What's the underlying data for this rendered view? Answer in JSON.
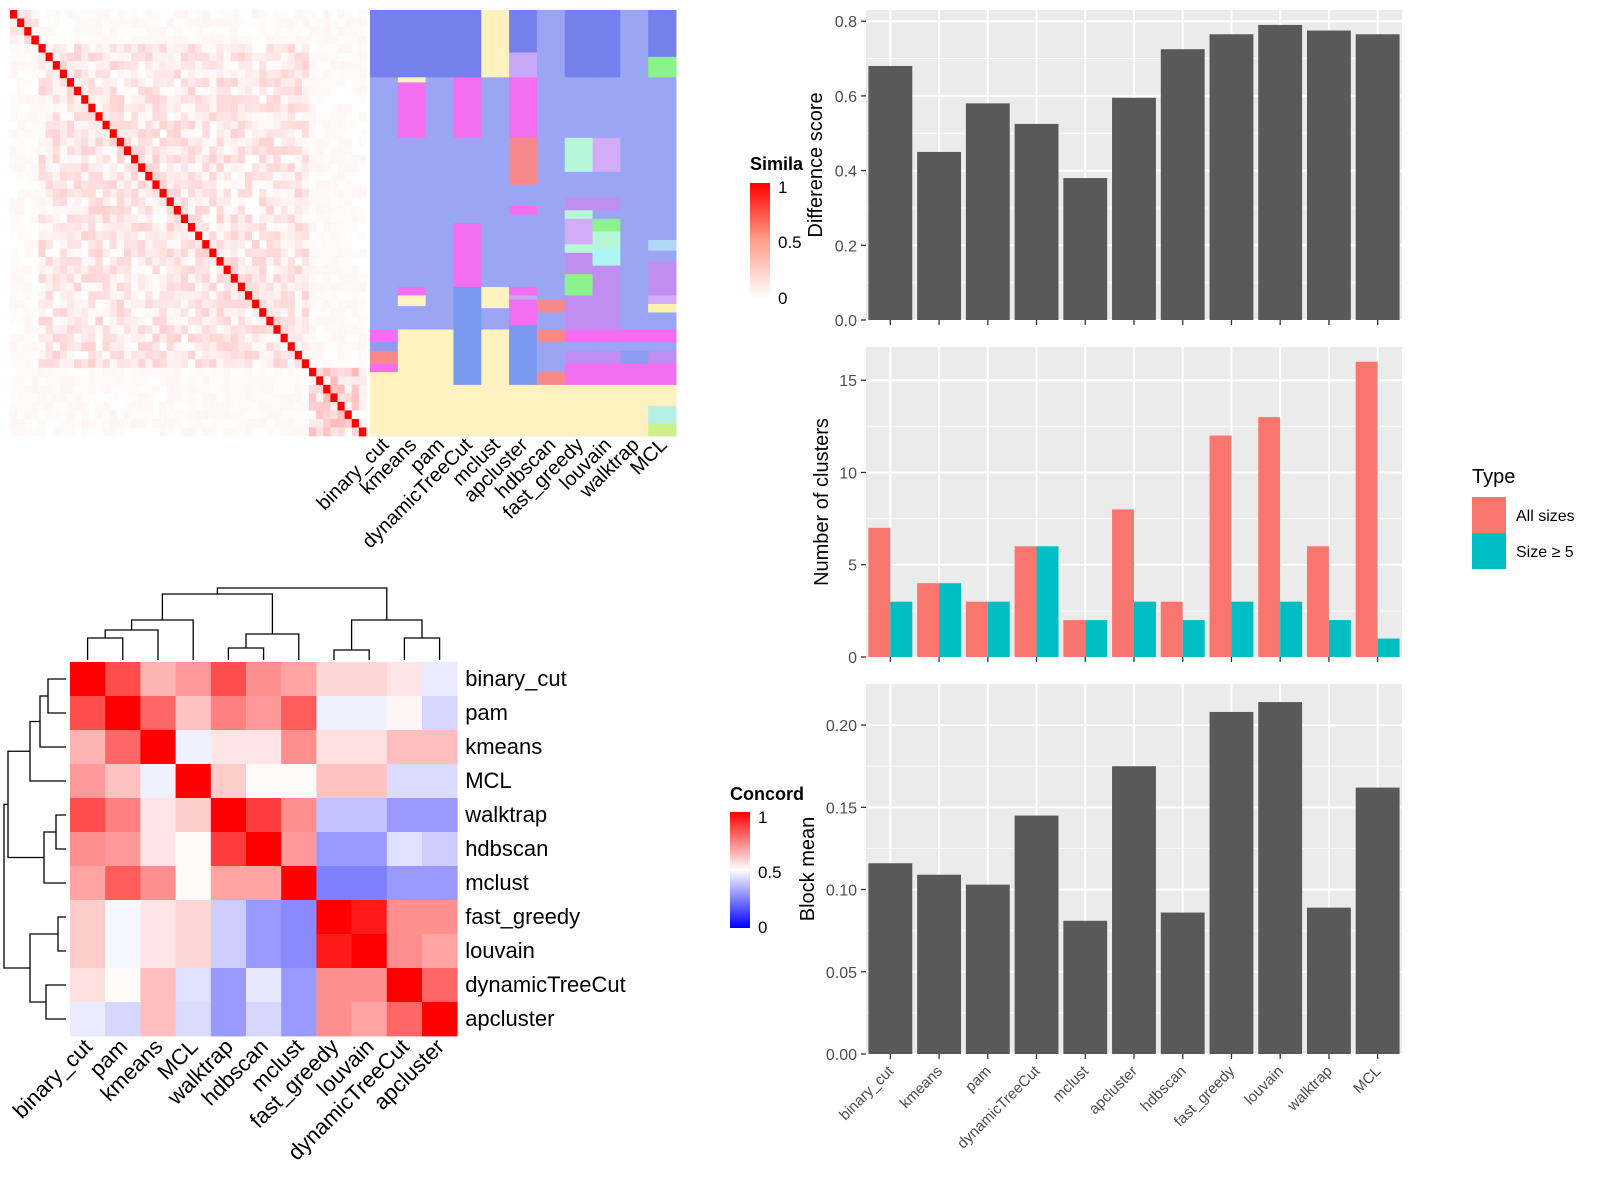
{
  "chart_data": [
    {
      "type": "heatmap",
      "id": "similarity",
      "legend_title": "Simila",
      "legend_ticks": [
        "1",
        "0.5",
        "0"
      ],
      "legend_colors": {
        "low": "#ffffff",
        "high": "#ff0000"
      }
    },
    {
      "type": "heatmap",
      "id": "classification",
      "columns": [
        "binary_cut",
        "kmeans",
        "pam",
        "dynamicTreeCut",
        "mclust",
        "apcluster",
        "hdbscan",
        "fast_greedy",
        "louvain",
        "walktrap",
        "MCL"
      ]
    },
    {
      "type": "heatmap",
      "id": "concordance",
      "legend_title": "Concord",
      "legend_ticks": [
        "1",
        "0.5",
        "0"
      ],
      "legend_colors": {
        "low": "#0000ff",
        "mid": "#ffffff",
        "high": "#ff0000"
      },
      "rows": [
        "binary_cut",
        "pam",
        "kmeans",
        "MCL",
        "walktrap",
        "hdbscan",
        "mclust",
        "fast_greedy",
        "louvain",
        "dynamicTreeCut",
        "apcluster"
      ],
      "columns": [
        "binary_cut",
        "pam",
        "kmeans",
        "MCL",
        "walktrap",
        "hdbscan",
        "mclust",
        "fast_greedy",
        "louvain",
        "dynamicTreeCut",
        "apcluster"
      ],
      "values": [
        [
          1.0,
          0.85,
          0.65,
          0.7,
          0.85,
          0.72,
          0.68,
          0.58,
          0.58,
          0.55,
          0.46
        ],
        [
          0.85,
          1.0,
          0.8,
          0.62,
          0.75,
          0.7,
          0.82,
          0.47,
          0.47,
          0.52,
          0.42
        ],
        [
          0.65,
          0.8,
          1.0,
          0.47,
          0.55,
          0.55,
          0.72,
          0.56,
          0.56,
          0.63,
          0.63
        ],
        [
          0.7,
          0.62,
          0.47,
          1.0,
          0.6,
          0.51,
          0.51,
          0.62,
          0.62,
          0.43,
          0.43
        ],
        [
          0.85,
          0.75,
          0.55,
          0.6,
          1.0,
          0.88,
          0.72,
          0.38,
          0.38,
          0.3,
          0.3
        ],
        [
          0.72,
          0.7,
          0.55,
          0.51,
          0.88,
          1.0,
          0.7,
          0.3,
          0.3,
          0.44,
          0.4
        ],
        [
          0.68,
          0.82,
          0.72,
          0.51,
          0.68,
          0.68,
          1.0,
          0.25,
          0.25,
          0.3,
          0.3
        ],
        [
          0.6,
          0.48,
          0.55,
          0.58,
          0.4,
          0.3,
          0.27,
          1.0,
          0.95,
          0.72,
          0.72
        ],
        [
          0.6,
          0.48,
          0.55,
          0.58,
          0.4,
          0.3,
          0.27,
          0.95,
          1.0,
          0.72,
          0.68
        ],
        [
          0.56,
          0.51,
          0.63,
          0.44,
          0.3,
          0.45,
          0.3,
          0.72,
          0.72,
          1.0,
          0.8
        ],
        [
          0.46,
          0.42,
          0.63,
          0.43,
          0.3,
          0.42,
          0.3,
          0.72,
          0.68,
          0.8,
          1.0
        ]
      ]
    },
    {
      "type": "bar",
      "id": "difference-score",
      "categories": [
        "binary_cut",
        "kmeans",
        "pam",
        "dynamicTreeCut",
        "mclust",
        "apcluster",
        "hdbscan",
        "fast_greedy",
        "louvain",
        "walktrap",
        "MCL"
      ],
      "values": [
        0.68,
        0.45,
        0.58,
        0.525,
        0.38,
        0.595,
        0.725,
        0.765,
        0.79,
        0.775,
        0.765
      ],
      "ylabel": "Difference score",
      "ylim": [
        0,
        0.83
      ],
      "yticks": [
        "0.0",
        "0.2",
        "0.4",
        "0.6",
        "0.8"
      ],
      "grid": true,
      "bar_color": "#595959",
      "panel_color": "#ebebeb"
    },
    {
      "type": "bar",
      "id": "number-of-clusters",
      "categories": [
        "binary_cut",
        "kmeans",
        "pam",
        "dynamicTreeCut",
        "mclust",
        "apcluster",
        "hdbscan",
        "fast_greedy",
        "louvain",
        "walktrap",
        "MCL"
      ],
      "series": [
        {
          "name": "All sizes",
          "color": "#f8766d",
          "values": [
            7,
            4,
            3,
            6,
            2,
            8,
            3,
            12,
            13,
            6,
            16
          ]
        },
        {
          "name": "Size ≥ 5",
          "color": "#00bfc4",
          "values": [
            3,
            4,
            3,
            6,
            2,
            3,
            2,
            3,
            3,
            2,
            1
          ]
        }
      ],
      "ylabel": "Number of clusters",
      "ylim": [
        0,
        16.8
      ],
      "yticks": [
        "0",
        "5",
        "10",
        "15"
      ],
      "legend_title": "Type",
      "legend_position": "right",
      "grid": true,
      "panel_color": "#ebebeb"
    },
    {
      "type": "bar",
      "id": "block-mean",
      "categories": [
        "binary_cut",
        "kmeans",
        "pam",
        "dynamicTreeCut",
        "mclust",
        "apcluster",
        "hdbscan",
        "fast_greedy",
        "louvain",
        "walktrap",
        "MCL"
      ],
      "values": [
        0.116,
        0.109,
        0.103,
        0.145,
        0.081,
        0.175,
        0.086,
        0.208,
        0.214,
        0.089,
        0.162
      ],
      "ylabel": "Block mean",
      "ylim": [
        0,
        0.225
      ],
      "yticks": [
        "0.00",
        "0.05",
        "0.10",
        "0.15",
        "0.20"
      ],
      "grid": true,
      "bar_color": "#595959",
      "panel_color": "#ebebeb"
    }
  ]
}
